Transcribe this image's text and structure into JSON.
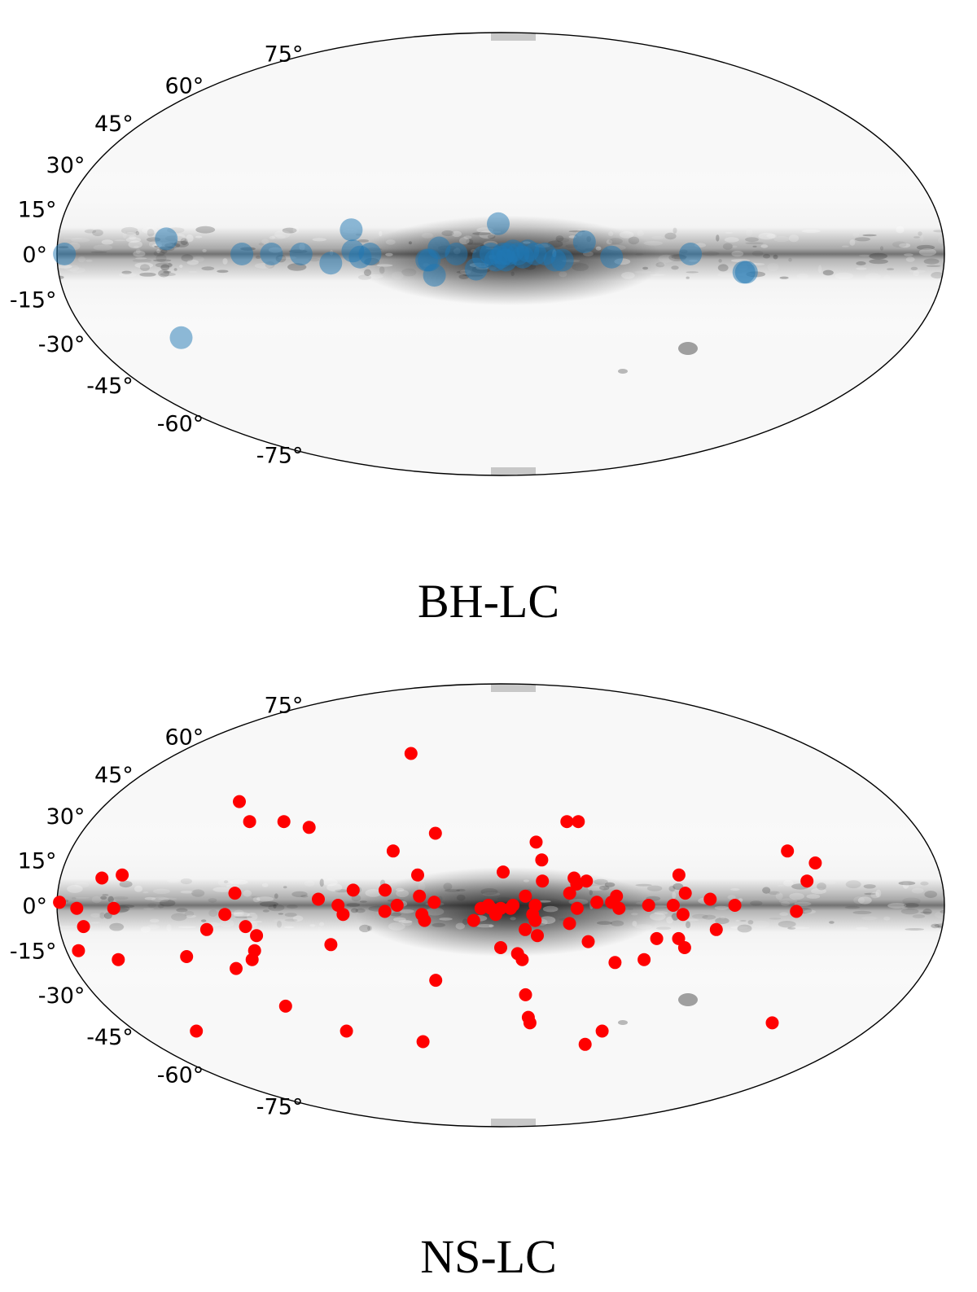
{
  "chart_data": [
    {
      "type": "scatter",
      "projection": "mollweide",
      "title": "BH-LC",
      "lat_tick_labels": [
        "75°",
        "60°",
        "45°",
        "30°",
        "15°",
        "0°",
        "-15°",
        "-30°",
        "-45°",
        "-60°",
        "-75°"
      ],
      "series": [
        {
          "marker_color": "#1f77b4",
          "marker_alpha": 0.5,
          "points": [
            {
              "lon": 177,
              "lat": 0
            },
            {
              "lon": 136,
              "lat": 5
            },
            {
              "lon": 140,
              "lat": -28
            },
            {
              "lon": 105,
              "lat": 0
            },
            {
              "lon": 93,
              "lat": 0
            },
            {
              "lon": 81,
              "lat": 0
            },
            {
              "lon": 69,
              "lat": -3
            },
            {
              "lon": 61,
              "lat": 8
            },
            {
              "lon": 60,
              "lat": 1
            },
            {
              "lon": 57,
              "lat": -1
            },
            {
              "lon": 53,
              "lat": 0
            },
            {
              "lon": 30,
              "lat": -2
            },
            {
              "lon": 29,
              "lat": -2
            },
            {
              "lon": 27,
              "lat": -7
            },
            {
              "lon": 25,
              "lat": 2
            },
            {
              "lon": 18,
              "lat": 0
            },
            {
              "lon": 10,
              "lat": -5
            },
            {
              "lon": 7,
              "lat": -1
            },
            {
              "lon": 4,
              "lat": 0
            },
            {
              "lon": 1,
              "lat": 10
            },
            {
              "lon": 2,
              "lat": -2
            },
            {
              "lon": 0,
              "lat": -1
            },
            {
              "lon": -1,
              "lat": 0
            },
            {
              "lon": -2,
              "lat": -2
            },
            {
              "lon": -3,
              "lat": 0
            },
            {
              "lon": -5,
              "lat": 1
            },
            {
              "lon": -7,
              "lat": 0
            },
            {
              "lon": -9,
              "lat": -1
            },
            {
              "lon": -11,
              "lat": 1
            },
            {
              "lon": -14,
              "lat": 0
            },
            {
              "lon": -18,
              "lat": 0
            },
            {
              "lon": -22,
              "lat": -2
            },
            {
              "lon": -25,
              "lat": -2
            },
            {
              "lon": -34,
              "lat": 4
            },
            {
              "lon": -45,
              "lat": -1
            },
            {
              "lon": -77,
              "lat": 0
            },
            {
              "lon": -99,
              "lat": -6
            },
            {
              "lon": -100,
              "lat": -6
            }
          ]
        }
      ]
    },
    {
      "type": "scatter",
      "projection": "mollweide",
      "title": "NS-LC",
      "lat_tick_labels": [
        "75°",
        "60°",
        "45°",
        "30°",
        "15°",
        "0°",
        "-15°",
        "-30°",
        "-45°",
        "-60°",
        "-75°"
      ],
      "series": [
        {
          "marker_color": "#ff0000",
          "marker_alpha": 1.0,
          "points": [
            {
              "lon": 179,
              "lat": 1
            },
            {
              "lon": 172,
              "lat": -1
            },
            {
              "lon": 170,
              "lat": -7
            },
            {
              "lon": 175,
              "lat": -15
            },
            {
              "lon": 163,
              "lat": 9
            },
            {
              "lon": 155,
              "lat": 10
            },
            {
              "lon": 157,
              "lat": -1
            },
            {
              "lon": 160,
              "lat": -18
            },
            {
              "lon": 150,
              "lat": -43
            },
            {
              "lon": 120,
              "lat": 35
            },
            {
              "lon": 110,
              "lat": 28
            },
            {
              "lon": 95,
              "lat": 28
            },
            {
              "lon": 83,
              "lat": 26
            },
            {
              "lon": 108,
              "lat": 4
            },
            {
              "lon": 112,
              "lat": -3
            },
            {
              "lon": 120,
              "lat": -8
            },
            {
              "lon": 104,
              "lat": -7
            },
            {
              "lon": 100,
              "lat": -10
            },
            {
              "lon": 102,
              "lat": -15
            },
            {
              "lon": 104,
              "lat": -18
            },
            {
              "lon": 131,
              "lat": -17
            },
            {
              "lon": 112,
              "lat": -21
            },
            {
              "lon": 98,
              "lat": -34
            },
            {
              "lon": 74,
              "lat": 2
            },
            {
              "lon": 66,
              "lat": 0
            },
            {
              "lon": 64,
              "lat": -3
            },
            {
              "lon": 60,
              "lat": 5
            },
            {
              "lon": 70,
              "lat": -13
            },
            {
              "lon": 76,
              "lat": -43
            },
            {
              "lon": 50,
              "lat": 53
            },
            {
              "lon": 45,
              "lat": 18
            },
            {
              "lon": 47,
              "lat": 5
            },
            {
              "lon": 47,
              "lat": -2
            },
            {
              "lon": 42,
              "lat": 0
            },
            {
              "lon": 34,
              "lat": 10
            },
            {
              "lon": 33,
              "lat": 3
            },
            {
              "lon": 32,
              "lat": -3
            },
            {
              "lon": 31,
              "lat": -5
            },
            {
              "lon": 28,
              "lat": 24
            },
            {
              "lon": 27,
              "lat": 1
            },
            {
              "lon": 28,
              "lat": -25
            },
            {
              "lon": 40,
              "lat": -47
            },
            {
              "lon": 11,
              "lat": -5
            },
            {
              "lon": 8,
              "lat": -1
            },
            {
              "lon": 5,
              "lat": 0
            },
            {
              "lon": 4,
              "lat": -1
            },
            {
              "lon": 2,
              "lat": -3
            },
            {
              "lon": 0,
              "lat": -1
            },
            {
              "lon": -1,
              "lat": 11
            },
            {
              "lon": 0,
              "lat": -14
            },
            {
              "lon": -4,
              "lat": -1
            },
            {
              "lon": -5,
              "lat": 0
            },
            {
              "lon": -7,
              "lat": -16
            },
            {
              "lon": -9,
              "lat": -18
            },
            {
              "lon": -10,
              "lat": -8
            },
            {
              "lon": -10,
              "lat": 3
            },
            {
              "lon": -13,
              "lat": -3
            },
            {
              "lon": -14,
              "lat": 0
            },
            {
              "lon": -14,
              "lat": -5
            },
            {
              "lon": -15,
              "lat": -10
            },
            {
              "lon": -11,
              "lat": -30
            },
            {
              "lon": -17,
              "lat": 15
            },
            {
              "lon": -17,
              "lat": 8
            },
            {
              "lon": -15,
              "lat": 21
            },
            {
              "lon": -13,
              "lat": -38
            },
            {
              "lon": -14,
              "lat": -40
            },
            {
              "lon": -29,
              "lat": 28
            },
            {
              "lon": -28,
              "lat": 4
            },
            {
              "lon": -28,
              "lat": -6
            },
            {
              "lon": -30,
              "lat": 9
            },
            {
              "lon": -31,
              "lat": 7
            },
            {
              "lon": -34,
              "lat": 28
            },
            {
              "lon": -31,
              "lat": -1
            },
            {
              "lon": -35,
              "lat": 8
            },
            {
              "lon": -36,
              "lat": -12
            },
            {
              "lon": -39,
              "lat": 1
            },
            {
              "lon": -45,
              "lat": 1
            },
            {
              "lon": -47,
              "lat": 3
            },
            {
              "lon": -48,
              "lat": -1
            },
            {
              "lon": -48,
              "lat": -19
            },
            {
              "lon": -44,
              "lat": -48
            },
            {
              "lon": -50,
              "lat": -43
            },
            {
              "lon": -60,
              "lat": 0
            },
            {
              "lon": -60,
              "lat": -18
            },
            {
              "lon": -64,
              "lat": -11
            },
            {
              "lon": -70,
              "lat": 0
            },
            {
              "lon": -73,
              "lat": 10
            },
            {
              "lon": -74,
              "lat": -3
            },
            {
              "lon": -73,
              "lat": -11
            },
            {
              "lon": -75,
              "lat": 4
            },
            {
              "lon": -76,
              "lat": -14
            },
            {
              "lon": -85,
              "lat": 2
            },
            {
              "lon": -88,
              "lat": -8
            },
            {
              "lon": -95,
              "lat": 0
            },
            {
              "lon": -120,
              "lat": 18
            },
            {
              "lon": -130,
              "lat": 14
            },
            {
              "lon": -125,
              "lat": 8
            },
            {
              "lon": -120,
              "lat": -2
            },
            {
              "lon": -130,
              "lat": -40
            }
          ]
        }
      ]
    }
  ],
  "captions": {
    "bh": "BH-LC",
    "ns": "NS-LC"
  }
}
